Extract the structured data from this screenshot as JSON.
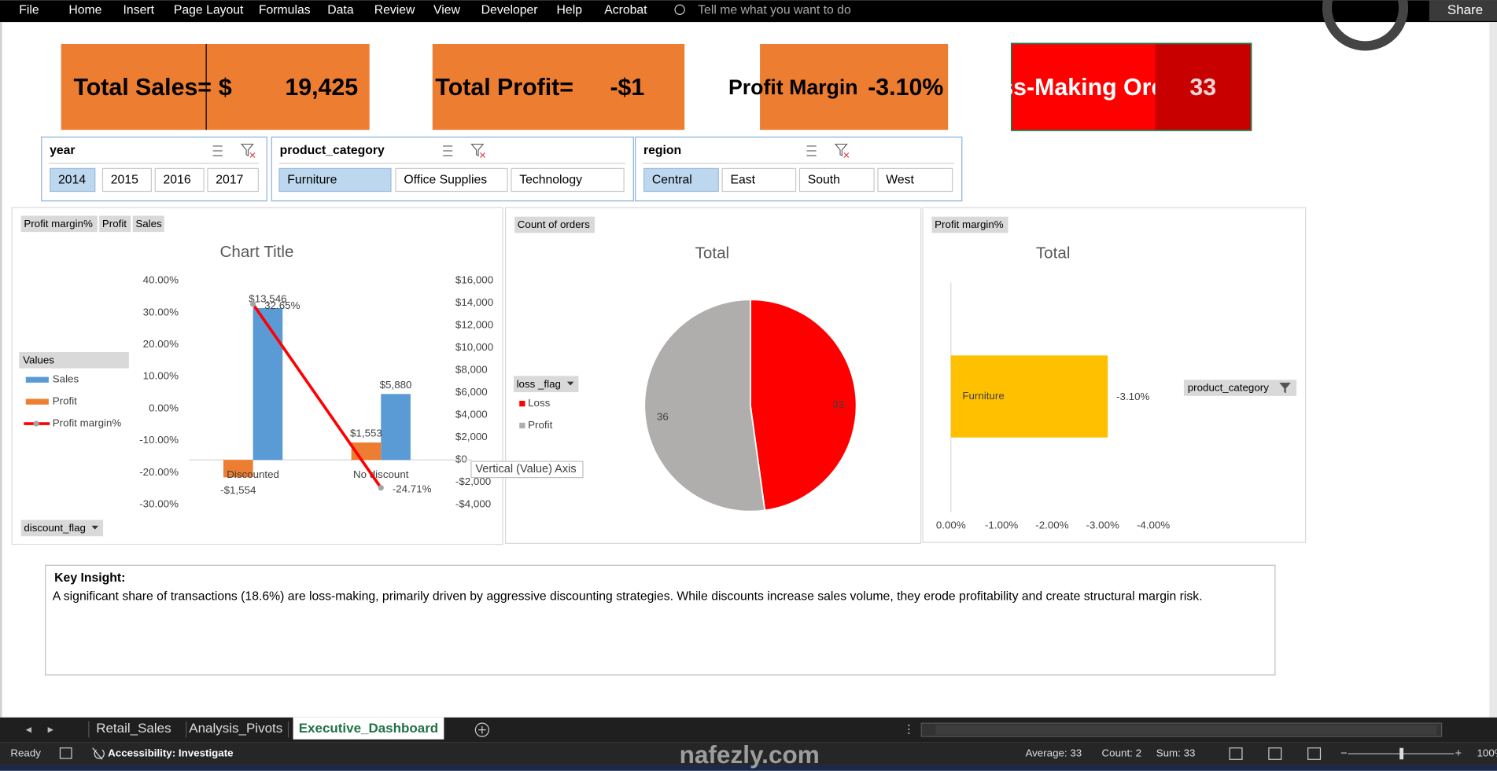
{
  "ribbon": {
    "tabs": [
      "File",
      "Home",
      "Insert",
      "Page Layout",
      "Formulas",
      "Data",
      "Review",
      "View",
      "Developer",
      "Help",
      "Acrobat"
    ],
    "search": "Tell me what you want to do",
    "share": "Share"
  },
  "kpis": [
    {
      "label": "Total Sales=",
      "currency": "$",
      "value": "19,425"
    },
    {
      "label": "Total Profit=",
      "value": "-$1"
    },
    {
      "label": "Profit Margin",
      "value": "-3.10%"
    },
    {
      "label": "Loss-Making Orde",
      "value": "33"
    }
  ],
  "slicers": [
    {
      "title": "year",
      "items": [
        "2014",
        "2015",
        "2016",
        "2017"
      ],
      "selected": 0
    },
    {
      "title": "product_category",
      "items": [
        "Furniture",
        "Office Supplies",
        "Technology"
      ],
      "selected": 0
    },
    {
      "title": "region",
      "items": [
        "Central",
        "East",
        "South",
        "West"
      ],
      "selected": 0
    }
  ],
  "chart_data": [
    {
      "type": "combo",
      "title": "Chart Title",
      "field_buttons": [
        "Profit margin%",
        "Profit",
        "Sales"
      ],
      "legend_title": "Values",
      "axis_field": "discount_flag",
      "tooltip": "Vertical (Value) Axis",
      "categories": [
        "Discounted",
        "No discount"
      ],
      "series": [
        {
          "name": "Sales",
          "type": "bar",
          "color": "#5b9bd5",
          "axis": "y2",
          "values": [
            13546,
            5880
          ],
          "value_labels": [
            "$13,546",
            "$5,880"
          ]
        },
        {
          "name": "Profit",
          "type": "bar",
          "color": "#ed7d31",
          "axis": "y2",
          "values": [
            -1554,
            1553
          ],
          "value_labels": [
            "-$1,554",
            "$1,553"
          ]
        },
        {
          "name": "Profit margin%",
          "type": "line",
          "color": "#ff0000",
          "values": [
            32.65,
            -24.71
          ],
          "value_labels": [
            "32.65%",
            "-24.71%"
          ]
        }
      ],
      "ylim": [
        -30,
        40
      ],
      "yticks": [
        {
          "value": 40,
          "label": "40.00%"
        },
        {
          "value": 30,
          "label": "30.00%"
        },
        {
          "value": 20,
          "label": "20.00%"
        },
        {
          "value": 10,
          "label": "10.00%"
        },
        {
          "value": 0,
          "label": "0.00%"
        },
        {
          "value": -10,
          "label": "-10.00%"
        },
        {
          "value": -20,
          "label": "-20.00%"
        },
        {
          "value": -30,
          "label": "-30.00%"
        }
      ],
      "y2lim": [
        -4000,
        16000
      ],
      "y2ticks": [
        {
          "value": 16000,
          "label": "$16,000"
        },
        {
          "value": 14000,
          "label": "$14,000"
        },
        {
          "value": 12000,
          "label": "$12,000"
        },
        {
          "value": 10000,
          "label": "$10,000"
        },
        {
          "value": 8000,
          "label": "$8,000"
        },
        {
          "value": 6000,
          "label": "$6,000"
        },
        {
          "value": 4000,
          "label": "$4,000"
        },
        {
          "value": 2000,
          "label": "$2,000"
        },
        {
          "value": 0,
          "label": "$0"
        },
        {
          "value": -2000,
          "label": "-$2,000"
        },
        {
          "value": -4000,
          "label": "-$4,000"
        }
      ]
    },
    {
      "type": "pie",
      "title": "Total",
      "field_buttons": [
        "Count of orders"
      ],
      "legend_title": "loss _flag",
      "categories": [
        "Loss",
        "Profit"
      ],
      "values": [
        33,
        36
      ],
      "colors": [
        "#ff0000",
        "#b0adad"
      ]
    },
    {
      "type": "hbar",
      "title": "Total",
      "field_buttons": [
        "Profit margin%"
      ],
      "axis_field": "product_category",
      "categories": [
        "Furniture"
      ],
      "values": [
        -3.1
      ],
      "value_labels": [
        "-3.10%"
      ],
      "color": "#ffc000",
      "xlim": [
        0,
        -4
      ],
      "xticks": [
        {
          "value": 0,
          "label": "0.00%"
        },
        {
          "value": -1,
          "label": "-1.00%"
        },
        {
          "value": -2,
          "label": "-2.00%"
        },
        {
          "value": -3,
          "label": "-3.00%"
        },
        {
          "value": -4,
          "label": "-4.00%"
        }
      ]
    }
  ],
  "insight": {
    "heading": "Key Insight:",
    "text": "A significant share of transactions (18.6%) are loss-making, primarily driven by aggressive discounting strategies. While discounts increase sales volume, they erode profitability and create structural margin risk."
  },
  "sheets": {
    "tabs": [
      "Retail_Sales",
      "Analysis_Pivots",
      "Executive_Dashboard"
    ],
    "active": 2
  },
  "status": {
    "ready": "Ready",
    "accessibility": "Accessibility: Investigate",
    "average": "Average: 33",
    "count": "Count: 2",
    "sum": "Sum: 33",
    "zoom": "100%"
  },
  "watermark": "nafezly.com"
}
